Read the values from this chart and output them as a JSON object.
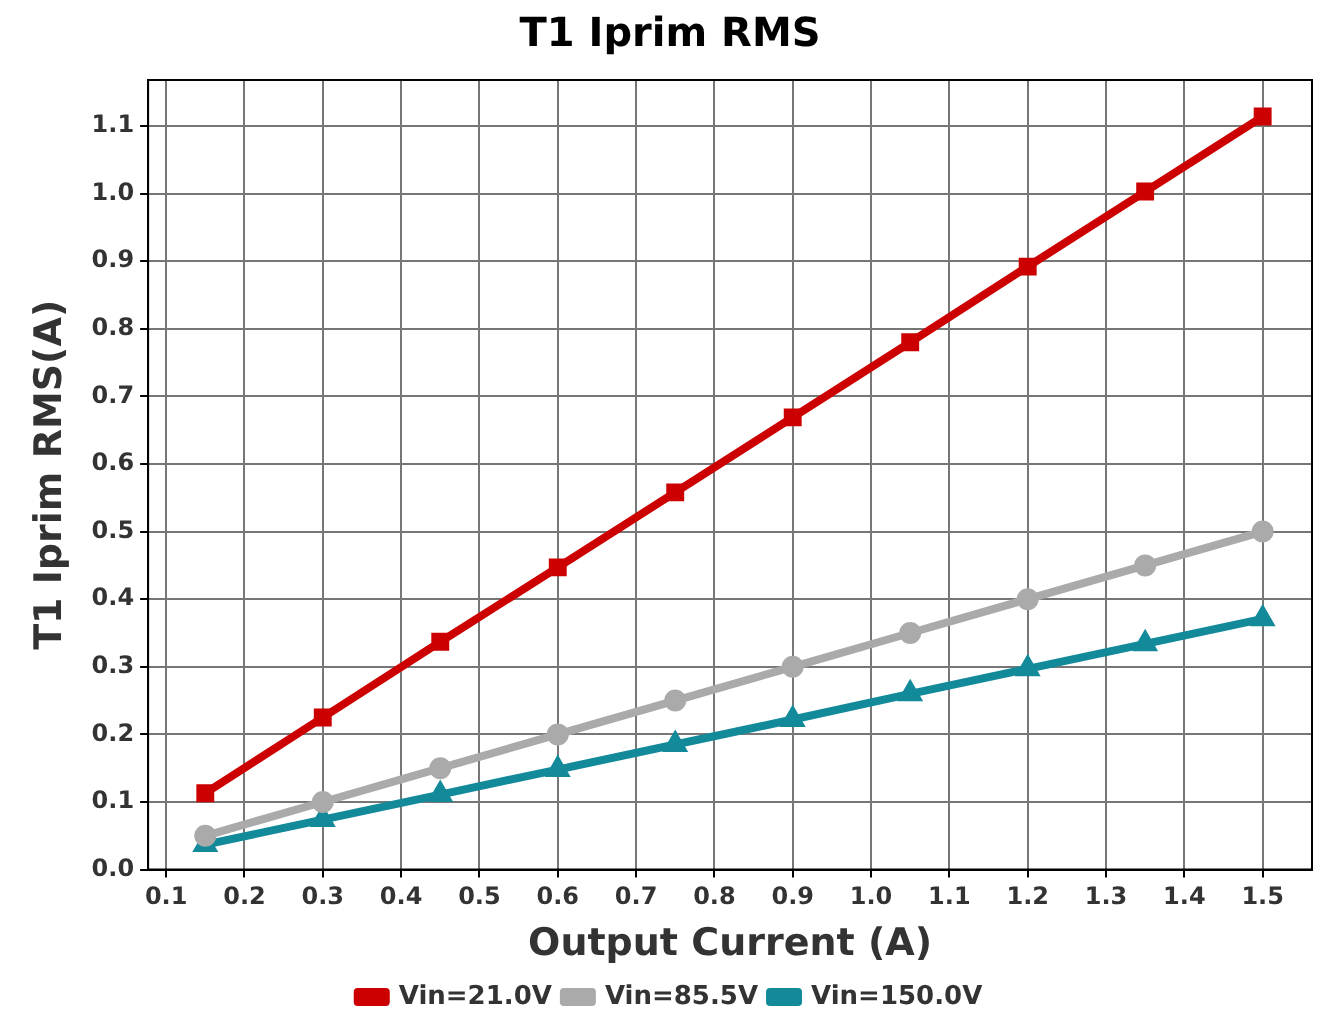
{
  "chart_data": {
    "type": "line",
    "title": "T1 Iprim RMS",
    "xlabel": "Output Current (A)",
    "ylabel": "T1 Iprim RMS(A)",
    "x": [
      0.15,
      0.3,
      0.45,
      0.6,
      0.75,
      0.9,
      1.05,
      1.2,
      1.35,
      1.5
    ],
    "series": [
      {
        "name": "Vin=21.0V",
        "color": "#cc0000",
        "marker": "square",
        "values": [
          0.113,
          0.225,
          0.337,
          0.447,
          0.558,
          0.669,
          0.78,
          0.892,
          1.003,
          1.114
        ]
      },
      {
        "name": "Vin=85.5V",
        "color": "#aaaaaa",
        "marker": "circle",
        "values": [
          0.05,
          0.1,
          0.15,
          0.2,
          0.25,
          0.3,
          0.35,
          0.4,
          0.45,
          0.5
        ]
      },
      {
        "name": "Vin=150.0V",
        "color": "#138a9a",
        "marker": "triangle",
        "values": [
          0.037,
          0.074,
          0.111,
          0.148,
          0.185,
          0.222,
          0.26,
          0.297,
          0.334,
          0.371
        ]
      }
    ],
    "xlim": [
      0.077,
      1.563
    ],
    "xticks": [
      {
        "value": 0.1,
        "label": "0.1"
      },
      {
        "value": 0.2,
        "label": "0.2"
      },
      {
        "value": 0.3,
        "label": "0.3"
      },
      {
        "value": 0.4,
        "label": "0.4"
      },
      {
        "value": 0.5,
        "label": "0.5"
      },
      {
        "value": 0.6,
        "label": "0.6"
      },
      {
        "value": 0.7,
        "label": "0.7"
      },
      {
        "value": 0.8,
        "label": "0.8"
      },
      {
        "value": 0.9,
        "label": "0.9"
      },
      {
        "value": 1.0,
        "label": "1.0"
      },
      {
        "value": 1.1,
        "label": "1.1"
      },
      {
        "value": 1.2,
        "label": "1.2"
      },
      {
        "value": 1.3,
        "label": "1.3"
      },
      {
        "value": 1.4,
        "label": "1.4"
      },
      {
        "value": 1.5,
        "label": "1.5"
      }
    ],
    "ylim": [
      0,
      1.168
    ],
    "yticks": [
      {
        "value": 0,
        "label": "0.0"
      },
      {
        "value": 0.1,
        "label": "0.1"
      },
      {
        "value": 0.2,
        "label": "0.2"
      },
      {
        "value": 0.3,
        "label": "0.3"
      },
      {
        "value": 0.4,
        "label": "0.4"
      },
      {
        "value": 0.5,
        "label": "0.5"
      },
      {
        "value": 0.6,
        "label": "0.6"
      },
      {
        "value": 0.7,
        "label": "0.7"
      },
      {
        "value": 0.8,
        "label": "0.8"
      },
      {
        "value": 0.9,
        "label": "0.9"
      },
      {
        "value": 1.0,
        "label": "1.0"
      },
      {
        "value": 1.1,
        "label": "1.1"
      }
    ],
    "grid": true,
    "legend": "bottom",
    "line_style": "solid"
  }
}
